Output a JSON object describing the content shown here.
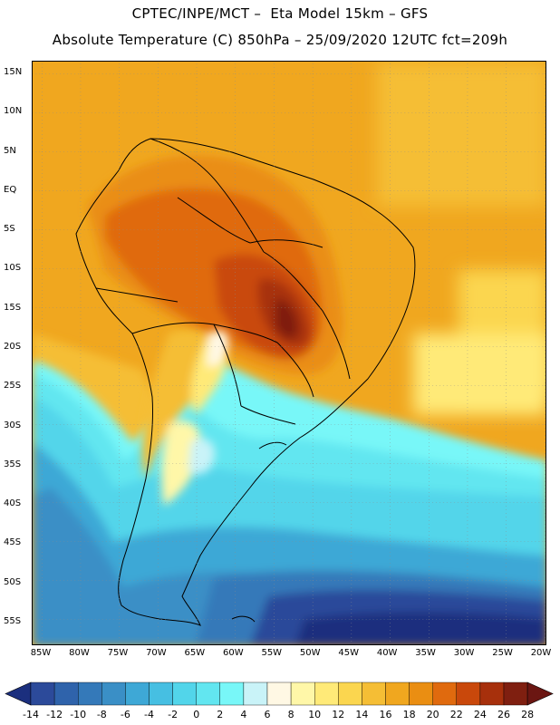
{
  "title_line1": "CPTEC/INPE/MCT –  Eta Model 15km – GFS",
  "title_line2": "Absolute Temperature (C) 850hPa – 25/09/2020 12UTC fct=209h",
  "latitudes": [
    {
      "label": "15N",
      "value": 15
    },
    {
      "label": "10N",
      "value": 10
    },
    {
      "label": "5N",
      "value": 5
    },
    {
      "label": "EQ",
      "value": 0
    },
    {
      "label": "5S",
      "value": -5
    },
    {
      "label": "10S",
      "value": -10
    },
    {
      "label": "15S",
      "value": -15
    },
    {
      "label": "20S",
      "value": -20
    },
    {
      "label": "25S",
      "value": -25
    },
    {
      "label": "30S",
      "value": -30
    },
    {
      "label": "35S",
      "value": -35
    },
    {
      "label": "40S",
      "value": -40
    },
    {
      "label": "45S",
      "value": -45
    },
    {
      "label": "50S",
      "value": -50
    },
    {
      "label": "55S",
      "value": -55
    }
  ],
  "longitudes": [
    {
      "label": "85W",
      "value": -85
    },
    {
      "label": "80W",
      "value": -80
    },
    {
      "label": "75W",
      "value": -75
    },
    {
      "label": "70W",
      "value": -70
    },
    {
      "label": "65W",
      "value": -65
    },
    {
      "label": "60W",
      "value": -60
    },
    {
      "label": "55W",
      "value": -55
    },
    {
      "label": "50W",
      "value": -50
    },
    {
      "label": "45W",
      "value": -45
    },
    {
      "label": "40W",
      "value": -40
    },
    {
      "label": "35W",
      "value": -35
    },
    {
      "label": "30W",
      "value": -30
    },
    {
      "label": "25W",
      "value": -25
    },
    {
      "label": "20W",
      "value": -20
    }
  ],
  "colorbar": {
    "labels": [
      "-14",
      "-12",
      "-10",
      "-8",
      "-6",
      "-4",
      "-2",
      "0",
      "2",
      "4",
      "6",
      "8",
      "10",
      "12",
      "14",
      "16",
      "18",
      "20",
      "22",
      "24",
      "26",
      "28"
    ],
    "colors": [
      "#1b2f7e",
      "#2c4a9a",
      "#2f63ab",
      "#3479b9",
      "#3a8fc6",
      "#3ea8d6",
      "#46bfe2",
      "#52d5ea",
      "#62e6f0",
      "#78f7f8",
      "#c9f3f8",
      "#fff8e4",
      "#fff7a8",
      "#ffea78",
      "#fbd64f",
      "#f5be35",
      "#f0a71f",
      "#ea8e12",
      "#e06a0e",
      "#c9480b",
      "#a7300c",
      "#7f1f10",
      "#6b1612"
    ]
  }
}
